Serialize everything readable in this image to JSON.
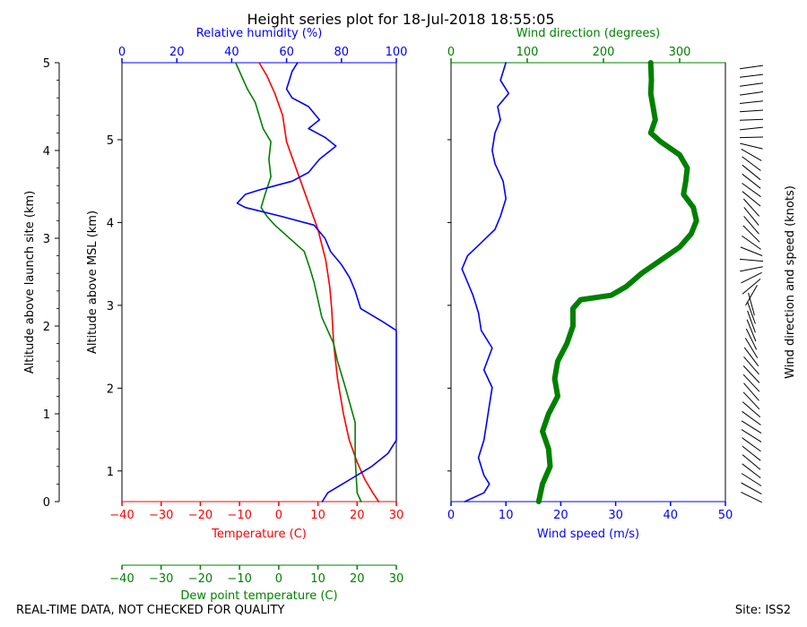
{
  "chart_data": {
    "type": "line",
    "title": "Height series plot for 18-Jul-2018 18:55:05",
    "left_outer_axis": {
      "label": "Altitude above launch site (km)",
      "range": [
        0,
        5
      ],
      "ticks": [
        "0",
        "1",
        "2",
        "3",
        "4",
        "5"
      ]
    },
    "left_inner_axis": {
      "label": "Altitude above MSL (km)",
      "range": [
        0.63,
        5.93
      ],
      "ticks": [
        "1",
        "2",
        "3",
        "4",
        "5"
      ]
    },
    "temperature_axis": {
      "label": "Temperature (C)",
      "range": [
        -40,
        30
      ],
      "ticks": [
        "−40",
        "−30",
        "−20",
        "−10",
        "0",
        "10",
        "20",
        "30"
      ],
      "color": "#ff0000"
    },
    "dewpoint_axis": {
      "label": "Dew point temperature (C)",
      "range": [
        -40,
        30
      ],
      "ticks": [
        "−40",
        "−30",
        "−20",
        "−10",
        "0",
        "10",
        "20",
        "30"
      ],
      "color": "#008000"
    },
    "rh_axis": {
      "label": "Relative humidity (%)",
      "range": [
        0,
        100
      ],
      "ticks": [
        "0",
        "20",
        "40",
        "60",
        "80",
        "100"
      ],
      "color": "#0000ff"
    },
    "wind_speed_axis": {
      "label": "Wind speed (m/s)",
      "range": [
        0,
        50
      ],
      "ticks": [
        "0",
        "10",
        "20",
        "30",
        "40",
        "50"
      ],
      "color": "#0000ff"
    },
    "wind_dir_axis": {
      "label": "Wind direction (degrees)",
      "range": [
        0,
        360
      ],
      "ticks": [
        "0",
        "100",
        "200",
        "300"
      ],
      "color": "#008000"
    },
    "barbs_label": "Wind direction and speed (knots)",
    "series": [
      {
        "name": "Temperature",
        "color": "#ff0000",
        "axis": "temperature",
        "points": [
          [
            25.5,
            0
          ],
          [
            24,
            0.1
          ],
          [
            22,
            0.25
          ],
          [
            20,
            0.45
          ],
          [
            18,
            0.7
          ],
          [
            16.5,
            1
          ],
          [
            15,
            1.4
          ],
          [
            14,
            1.8
          ],
          [
            13.5,
            2.2
          ],
          [
            13,
            2.45
          ],
          [
            12,
            2.75
          ],
          [
            10,
            3.1
          ],
          [
            8,
            3.35
          ],
          [
            6,
            3.6
          ],
          [
            4,
            3.85
          ],
          [
            2,
            4.1
          ],
          [
            1,
            4.4
          ],
          [
            -1,
            4.65
          ],
          [
            -3,
            4.85
          ],
          [
            -5,
            5
          ]
        ]
      },
      {
        "name": "Dew point temperature",
        "color": "#008000",
        "axis": "dewpoint",
        "points": [
          [
            21,
            0
          ],
          [
            20,
            0.1
          ],
          [
            19.5,
            0.5
          ],
          [
            19.5,
            0.9
          ],
          [
            17,
            1.3
          ],
          [
            15,
            1.6
          ],
          [
            14,
            1.8
          ],
          [
            11,
            2.1
          ],
          [
            9,
            2.5
          ],
          [
            8,
            2.65
          ],
          [
            6.5,
            2.85
          ],
          [
            -1,
            3.15
          ],
          [
            -3,
            3.25
          ],
          [
            -4.5,
            3.35
          ],
          [
            -3.5,
            3.5
          ],
          [
            -2,
            3.7
          ],
          [
            -2.5,
            3.9
          ],
          [
            -2,
            4.1
          ],
          [
            -4,
            4.25
          ],
          [
            -5,
            4.4
          ],
          [
            -6,
            4.55
          ],
          [
            -8,
            4.7
          ],
          [
            -9.5,
            4.85
          ],
          [
            -11,
            5
          ]
        ]
      },
      {
        "name": "Relative humidity",
        "color": "#0000ff",
        "axis": "rh",
        "points": [
          [
            73,
            0
          ],
          [
            75,
            0.1
          ],
          [
            83,
            0.25
          ],
          [
            91,
            0.4
          ],
          [
            97,
            0.55
          ],
          [
            100,
            0.7
          ],
          [
            100,
            1.5
          ],
          [
            100,
            1.95
          ],
          [
            95,
            2.05
          ],
          [
            87,
            2.2
          ],
          [
            85,
            2.4
          ],
          [
            83,
            2.55
          ],
          [
            80,
            2.7
          ],
          [
            76,
            2.85
          ],
          [
            74,
            3
          ],
          [
            70,
            3.15
          ],
          [
            58,
            3.25
          ],
          [
            45,
            3.35
          ],
          [
            42,
            3.4
          ],
          [
            45,
            3.5
          ],
          [
            50,
            3.55
          ],
          [
            56,
            3.6
          ],
          [
            62,
            3.65
          ],
          [
            68,
            3.75
          ],
          [
            72,
            3.9
          ],
          [
            78,
            4.05
          ],
          [
            74,
            4.15
          ],
          [
            68,
            4.25
          ],
          [
            72,
            4.35
          ],
          [
            68,
            4.5
          ],
          [
            62,
            4.6
          ],
          [
            60,
            4.7
          ],
          [
            61,
            4.8
          ],
          [
            62,
            4.9
          ],
          [
            64,
            5
          ]
        ]
      },
      {
        "name": "Wind speed",
        "color": "#0000ff",
        "axis": "wind_speed",
        "points": [
          [
            2.5,
            0
          ],
          [
            6,
            0.1
          ],
          [
            7,
            0.2
          ],
          [
            6,
            0.3
          ],
          [
            5,
            0.5
          ],
          [
            6,
            0.7
          ],
          [
            6.5,
            0.9
          ],
          [
            7,
            1.1
          ],
          [
            7.5,
            1.3
          ],
          [
            6,
            1.5
          ],
          [
            7.5,
            1.75
          ],
          [
            5.5,
            1.95
          ],
          [
            5,
            2.15
          ],
          [
            4,
            2.35
          ],
          [
            3,
            2.5
          ],
          [
            2,
            2.65
          ],
          [
            3,
            2.8
          ],
          [
            5.5,
            2.95
          ],
          [
            8,
            3.1
          ],
          [
            9,
            3.25
          ],
          [
            10,
            3.45
          ],
          [
            9.5,
            3.65
          ],
          [
            8,
            3.85
          ],
          [
            7.5,
            4
          ],
          [
            8,
            4.2
          ],
          [
            9,
            4.35
          ],
          [
            8.5,
            4.5
          ],
          [
            10.5,
            4.65
          ],
          [
            9,
            4.8
          ],
          [
            10,
            5
          ]
        ]
      },
      {
        "name": "Wind direction",
        "color": "#008000",
        "axis": "wind_dir",
        "points": [
          [
            115,
            0
          ],
          [
            120,
            0.2
          ],
          [
            130,
            0.4
          ],
          [
            128,
            0.6
          ],
          [
            120,
            0.8
          ],
          [
            128,
            1
          ],
          [
            140,
            1.2
          ],
          [
            136,
            1.4
          ],
          [
            140,
            1.6
          ],
          [
            152,
            1.8
          ],
          [
            160,
            2
          ],
          [
            160,
            2.2
          ],
          [
            170,
            2.3
          ],
          [
            210,
            2.35
          ],
          [
            230,
            2.45
          ],
          [
            250,
            2.6
          ],
          [
            275,
            2.75
          ],
          [
            300,
            2.9
          ],
          [
            315,
            3.05
          ],
          [
            322,
            3.2
          ],
          [
            318,
            3.35
          ],
          [
            305,
            3.5
          ],
          [
            308,
            3.65
          ],
          [
            310,
            3.8
          ],
          [
            300,
            3.95
          ],
          [
            275,
            4.1
          ],
          [
            262,
            4.2
          ],
          [
            268,
            4.35
          ],
          [
            265,
            4.5
          ],
          [
            262,
            4.65
          ],
          [
            263,
            4.8
          ],
          [
            262,
            5
          ]
        ]
      }
    ]
  },
  "footer": {
    "disclaimer": "REAL-TIME DATA, NOT CHECKED FOR QUALITY",
    "site": "Site: ISS2"
  }
}
